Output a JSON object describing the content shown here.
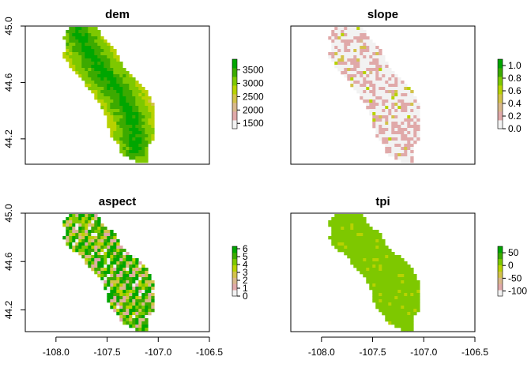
{
  "chart_data": [
    {
      "type": "heatmap",
      "title": "dem",
      "xlim": [
        -108.3,
        -106.5
      ],
      "ylim": [
        44.02,
        45.0
      ],
      "xticks": [],
      "yticks": [
        {
          "value": 44.2,
          "label": "44.2"
        },
        {
          "value": 44.6,
          "label": "44.6"
        },
        {
          "value": 45.0,
          "label": "45.0"
        }
      ],
      "legend": {
        "position": "right",
        "min": 1300,
        "max": 3900,
        "ticks": [
          {
            "value": 1500,
            "label": "1500"
          },
          {
            "value": 2000,
            "label": "2000"
          },
          {
            "value": 2500,
            "label": "2500"
          },
          {
            "value": 3000,
            "label": "3000"
          },
          {
            "value": 3500,
            "label": "3500"
          }
        ]
      },
      "colors": [
        "#f2f2f2",
        "#e0a9a9",
        "#d9b88c",
        "#d3c24a",
        "#b8d200",
        "#7ec800",
        "#3caa00",
        "#00a600"
      ]
    },
    {
      "type": "heatmap",
      "title": "slope",
      "xlim": [
        -108.3,
        -106.5
      ],
      "ylim": [
        44.02,
        45.0
      ],
      "xticks": [],
      "yticks": [],
      "legend": {
        "position": "right",
        "min": 0,
        "max": 1.1,
        "ticks": [
          {
            "value": 0.0,
            "label": "0.0"
          },
          {
            "value": 0.2,
            "label": "0.2"
          },
          {
            "value": 0.4,
            "label": "0.4"
          },
          {
            "value": 0.6,
            "label": "0.6"
          },
          {
            "value": 0.8,
            "label": "0.8"
          },
          {
            "value": 1.0,
            "label": "1.0"
          }
        ]
      },
      "colors": [
        "#f2f2f2",
        "#e0a9a9",
        "#d9b88c",
        "#d3c24a",
        "#b8d200",
        "#7ec800",
        "#3caa00",
        "#00a600"
      ]
    },
    {
      "type": "heatmap",
      "title": "aspect",
      "xlim": [
        -108.3,
        -106.5
      ],
      "ylim": [
        44.02,
        45.0
      ],
      "xticks": [
        {
          "value": -108.0,
          "label": "-108.0"
        },
        {
          "value": -107.5,
          "label": "-107.5"
        },
        {
          "value": -107.0,
          "label": "-107.0"
        },
        {
          "value": -106.5,
          "label": "-106.5"
        }
      ],
      "yticks": [
        {
          "value": 44.2,
          "label": "44.2"
        },
        {
          "value": 44.6,
          "label": "44.6"
        },
        {
          "value": 45.0,
          "label": "45.0"
        }
      ],
      "legend": {
        "position": "right",
        "min": 0,
        "max": 6.3,
        "ticks": [
          {
            "value": 0,
            "label": "0"
          },
          {
            "value": 1,
            "label": "1"
          },
          {
            "value": 2,
            "label": "2"
          },
          {
            "value": 3,
            "label": "3"
          },
          {
            "value": 4,
            "label": "4"
          },
          {
            "value": 5,
            "label": "5"
          },
          {
            "value": 6,
            "label": "6"
          }
        ]
      },
      "colors": [
        "#f2f2f2",
        "#e0a9a9",
        "#d9b88c",
        "#d3c24a",
        "#b8d200",
        "#7ec800",
        "#3caa00",
        "#00a600"
      ]
    },
    {
      "type": "heatmap",
      "title": "tpi",
      "xlim": [
        -108.3,
        -106.5
      ],
      "ylim": [
        44.02,
        45.0
      ],
      "xticks": [
        {
          "value": -108.0,
          "label": "-108.0"
        },
        {
          "value": -107.5,
          "label": "-107.5"
        },
        {
          "value": -107.0,
          "label": "-107.0"
        },
        {
          "value": -106.5,
          "label": "-106.5"
        }
      ],
      "yticks": [],
      "legend": {
        "position": "right",
        "min": -120,
        "max": 75,
        "ticks": [
          {
            "value": 50,
            "label": "50"
          },
          {
            "value": 0,
            "label": "0"
          },
          {
            "value": -50,
            "label": "-50"
          },
          {
            "value": -100,
            "label": "-100"
          }
        ]
      },
      "colors": [
        "#f2f2f2",
        "#e0a9a9",
        "#d9b88c",
        "#d3c24a",
        "#b8d200",
        "#7ec800",
        "#3caa00",
        "#00a600"
      ]
    }
  ]
}
